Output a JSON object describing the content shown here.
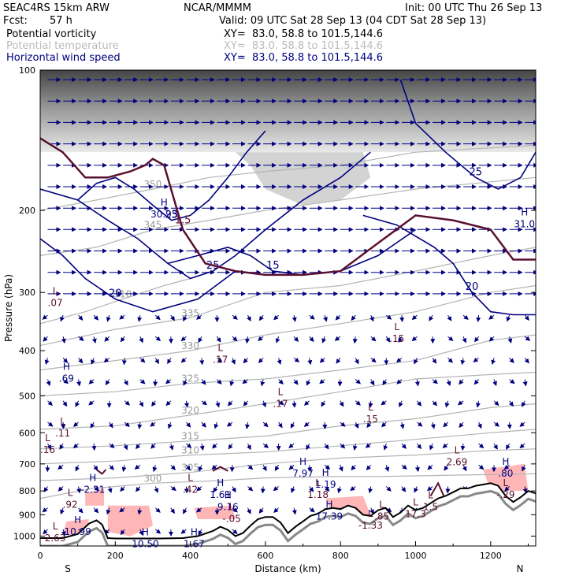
{
  "header": {
    "model": "SEAC4RS 15km ARW",
    "org": "NCAR/MMMM",
    "init": "Init: 00 UTC Thu 26 Sep 13",
    "fcst_label": "Fcst:",
    "fcst_value": "57 h",
    "valid": "Valid: 09 UTC Sat 28 Sep 13 (04 CDT Sat 28 Sep 13)",
    "fields": [
      {
        "name": "Potential vorticity",
        "xy": "XY=  83.0, 58.8 to 101.5,144.6",
        "color": "#000000"
      },
      {
        "name": "Potential temperature",
        "xy": "XY=  83.0, 58.8 to 101.5,144.6",
        "color": "#bbbbbb"
      },
      {
        "name": "Horizontal wind speed",
        "xy": "XY=  83.0, 58.8 to 101.5,144.6",
        "color": "#00007f"
      }
    ]
  },
  "chart_data": {
    "type": "cross-section",
    "xlabel": "Distance (km)",
    "ylabel": "Pressure (hPa)",
    "xlim": [
      0,
      1320
    ],
    "ylim": [
      100,
      1050
    ],
    "y_scale": "log",
    "x_ticks": [
      0,
      200,
      400,
      600,
      800,
      1000,
      1200
    ],
    "x_tick_labels": [
      "0",
      "200",
      "400",
      "600",
      "800",
      "1000",
      "1200"
    ],
    "y_ticks": [
      100,
      200,
      300,
      400,
      500,
      600,
      700,
      800,
      900,
      1000
    ],
    "y_tick_labels": [
      "100",
      "200",
      "300",
      "400",
      "500",
      "600",
      "700",
      "800",
      "900",
      "1000"
    ],
    "end_labels": {
      "left": "S",
      "right": "N"
    },
    "colors": {
      "pv_contour": "#5a1030",
      "theta_contour": "#b4b4b4",
      "wind_contour": "#00007f",
      "pv_fill": "#ffb6b6",
      "terrain": "#000000"
    },
    "terrain": {
      "x": [
        0,
        60,
        100,
        130,
        150,
        165,
        180,
        200,
        260,
        320,
        380,
        420,
        460,
        480,
        500,
        520,
        540,
        560,
        580,
        600,
        620,
        640,
        660,
        680,
        700,
        720,
        740,
        760,
        780,
        800,
        820,
        840,
        860,
        880,
        900,
        920,
        940,
        960,
        980,
        1000,
        1020,
        1040,
        1060,
        1080,
        1100,
        1120,
        1140,
        1160,
        1180,
        1200,
        1220,
        1240,
        1260,
        1280,
        1300,
        1320
      ],
      "p": [
        1010,
        1010,
        990,
        940,
        925,
        945,
        1010,
        1012,
        1012,
        1012,
        1010,
        1000,
        975,
        955,
        970,
        1000,
        985,
        950,
        920,
        910,
        910,
        935,
        985,
        955,
        930,
        905,
        895,
        875,
        870,
        875,
        860,
        870,
        900,
        905,
        880,
        870,
        910,
        890,
        860,
        880,
        870,
        850,
        830,
        820,
        805,
        790,
        790,
        780,
        775,
        770,
        780,
        820,
        845,
        825,
        800,
        810
      ]
    },
    "theta_contours": [
      {
        "label": "300",
        "x": [
          0,
          140,
          300,
          480,
          600,
          780,
          900,
          1100,
          1320
        ],
        "p": [
          830,
          790,
          770,
          760,
          750,
          745,
          745,
          740,
          735
        ]
      },
      {
        "label": "305",
        "x": [
          0,
          200,
          400,
          600,
          800,
          1000,
          1200,
          1320
        ],
        "p": [
          760,
          750,
          730,
          700,
          680,
          670,
          655,
          650
        ]
      },
      {
        "label": "310",
        "x": [
          0,
          200,
          400,
          600,
          800,
          1000,
          1200,
          1320
        ],
        "p": [
          700,
          690,
          670,
          660,
          640,
          620,
          600,
          590
        ]
      },
      {
        "label": "315",
        "x": [
          0,
          200,
          400,
          600,
          800,
          1000,
          1200,
          1320
        ],
        "p": [
          650,
          640,
          625,
          610,
          580,
          560,
          530,
          520
        ]
      },
      {
        "label": "320",
        "x": [
          0,
          200,
          400,
          600,
          800,
          1000,
          1200,
          1320
        ],
        "p": [
          590,
          580,
          550,
          520,
          490,
          460,
          450,
          445
        ]
      },
      {
        "label": "325",
        "x": [
          0,
          200,
          400,
          600,
          800,
          1000,
          1200,
          1320
        ],
        "p": [
          500,
          490,
          470,
          460,
          440,
          420,
          380,
          370
        ]
      },
      {
        "label": "330",
        "x": [
          0,
          200,
          400,
          600,
          800,
          1000,
          1200,
          1320
        ],
        "p": [
          440,
          420,
          400,
          370,
          350,
          330,
          300,
          290
        ]
      },
      {
        "label": "335",
        "x": [
          0,
          200,
          400,
          600,
          800,
          1000,
          1200,
          1320
        ],
        "p": [
          390,
          360,
          340,
          300,
          290,
          270,
          250,
          240
        ]
      },
      {
        "label": "310",
        "x": [
          0,
          120,
          220,
          330,
          400
        ],
        "p": [
          350,
          330,
          310,
          290,
          280
        ]
      },
      {
        "label": "345",
        "x": [
          0,
          150,
          300,
          450,
          600,
          800,
          1000,
          1320
        ],
        "p": [
          250,
          240,
          220,
          210,
          200,
          190,
          180,
          170
        ]
      },
      {
        "label": "350",
        "x": [
          0,
          150,
          300,
          450,
          600,
          800,
          1000,
          1320
        ],
        "p": [
          200,
          190,
          180,
          170,
          165,
          160,
          150,
          145
        ]
      }
    ],
    "wind_contours": [
      {
        "label": "20",
        "x": [
          0,
          60,
          120,
          200,
          300,
          420,
          520
        ],
        "p": [
          230,
          250,
          280,
          310,
          330,
          310,
          270
        ]
      },
      {
        "label": "25",
        "x": [
          0,
          100,
          180,
          260,
          340,
          400,
          460,
          520,
          600,
          700,
          800,
          880
        ],
        "p": [
          180,
          190,
          210,
          230,
          260,
          280,
          270,
          250,
          220,
          190,
          170,
          150
        ]
      },
      {
        "label": "25",
        "x": [
          100,
          150,
          200,
          250,
          300,
          350,
          400,
          450,
          500,
          550,
          600
        ],
        "p": [
          190,
          175,
          170,
          180,
          195,
          210,
          205,
          190,
          170,
          150,
          135
        ]
      },
      {
        "label": "20",
        "x": [
          860,
          950,
          1050,
          1100,
          1150,
          1200,
          1260,
          1320
        ],
        "p": [
          205,
          215,
          240,
          260,
          300,
          330,
          335,
          335
        ]
      },
      {
        "label": "25",
        "x": [
          960,
          1000,
          1080,
          1160,
          1220,
          1280,
          1320
        ],
        "p": [
          105,
          130,
          150,
          170,
          180,
          170,
          150
        ]
      },
      {
        "label": "15",
        "x": [
          340,
          420,
          500,
          560,
          620,
          700,
          800,
          900,
          1000
        ],
        "p": [
          260,
          250,
          240,
          250,
          270,
          275,
          270,
          250,
          220
        ]
      }
    ],
    "pv_contours": [
      {
        "label": "1.5",
        "x": [
          0,
          60,
          120,
          180,
          240,
          280,
          300,
          330,
          380,
          440,
          520,
          600,
          700,
          800,
          900,
          1000,
          1100,
          1200,
          1260,
          1320
        ],
        "p": [
          140,
          150,
          170,
          170,
          165,
          160,
          155,
          160,
          220,
          260,
          270,
          275,
          275,
          270,
          235,
          205,
          210,
          220,
          255,
          255
        ]
      },
      {
        "label": "1.5",
        "x": [
          150,
          165,
          175
        ],
        "p": [
          720,
          735,
          720
        ]
      },
      {
        "label": "1.5",
        "x": [
          460,
          480,
          500
        ],
        "p": [
          725,
          710,
          725
        ]
      },
      {
        "label": "1.5",
        "x": [
          1040,
          1060,
          1075
        ],
        "p": [
          820,
          770,
          820
        ]
      }
    ],
    "pv_fill_regions": [
      {
        "x": [
          120,
          170,
          170,
          120
        ],
        "p": [
          810,
          790,
          860,
          860
        ]
      },
      {
        "x": [
          180,
          290,
          300,
          240,
          180
        ],
        "p": [
          860,
          860,
          950,
          1000,
          980
        ]
      },
      {
        "x": [
          410,
          510,
          520,
          420
        ],
        "p": [
          870,
          860,
          920,
          920
        ]
      },
      {
        "x": [
          760,
          860,
          880,
          780
        ],
        "p": [
          830,
          820,
          900,
          900
        ]
      },
      {
        "x": [
          1180,
          1290,
          1300,
          1200
        ],
        "p": [
          720,
          700,
          800,
          800
        ]
      },
      {
        "x": [
          70,
          130,
          120,
          60
        ],
        "p": [
          930,
          920,
          1000,
          990
        ]
      }
    ],
    "hl_labels": [
      {
        "type": "H",
        "value": "30.93",
        "x": 330,
        "p": 200
      },
      {
        "type": "H",
        "value": "31.0",
        "x": 1290,
        "p": 210
      },
      {
        "type": "L",
        "value": ".07",
        "x": 40,
        "p": 310
      },
      {
        "type": "L",
        "value": ".15",
        "x": 950,
        "p": 370
      },
      {
        "type": "L",
        "value": ".17",
        "x": 480,
        "p": 410
      },
      {
        "type": "H",
        "value": ".69",
        "x": 70,
        "p": 450
      },
      {
        "type": "L",
        "value": ".17",
        "x": 640,
        "p": 510
      },
      {
        "type": "L",
        "value": ".15",
        "x": 880,
        "p": 550
      },
      {
        "type": "L",
        "value": ".11",
        "x": 60,
        "p": 590
      },
      {
        "type": "L",
        "value": ".16",
        "x": 20,
        "p": 640
      },
      {
        "type": "L",
        "value": "2.69",
        "x": 1110,
        "p": 680
      },
      {
        "type": "H",
        "value": ".80",
        "x": 1240,
        "p": 720
      },
      {
        "type": "H",
        "value": "7.97",
        "x": 700,
        "p": 720
      },
      {
        "type": "H",
        "value": "1.19",
        "x": 760,
        "p": 760
      },
      {
        "type": "H",
        "value": "-2.31",
        "x": 140,
        "p": 780
      },
      {
        "type": "L",
        "value": ".42",
        "x": 400,
        "p": 780
      },
      {
        "type": "H",
        "value": "1.61",
        "x": 480,
        "p": 800
      },
      {
        "type": "L",
        "value": "1.18",
        "x": 740,
        "p": 800
      },
      {
        "type": "L",
        "value": "-.29",
        "x": 1240,
        "p": 800
      },
      {
        "type": "L",
        "value": ".92",
        "x": 80,
        "p": 840
      },
      {
        "type": "H",
        "value": "9.16",
        "x": 500,
        "p": 850
      },
      {
        "type": "L",
        "value": "1.5",
        "x": 1040,
        "p": 850
      },
      {
        "type": "L",
        "value": "-.05",
        "x": 510,
        "p": 900
      },
      {
        "type": "H",
        "value": "17.39",
        "x": 770,
        "p": 890
      },
      {
        "type": "L",
        "value": ".85",
        "x": 910,
        "p": 890
      },
      {
        "type": "L",
        "value": "17.3",
        "x": 1000,
        "p": 880
      },
      {
        "type": "L",
        "value": "-1.33",
        "x": 880,
        "p": 930
      },
      {
        "type": "H",
        "value": "10.99",
        "x": 100,
        "p": 960
      },
      {
        "type": "L",
        "value": "2.63",
        "x": 40,
        "p": 990
      },
      {
        "type": "H",
        "value": "10.50",
        "x": 280,
        "p": 1020
      },
      {
        "type": "H",
        "value": "1.67",
        "x": 410,
        "p": 1020
      }
    ]
  }
}
